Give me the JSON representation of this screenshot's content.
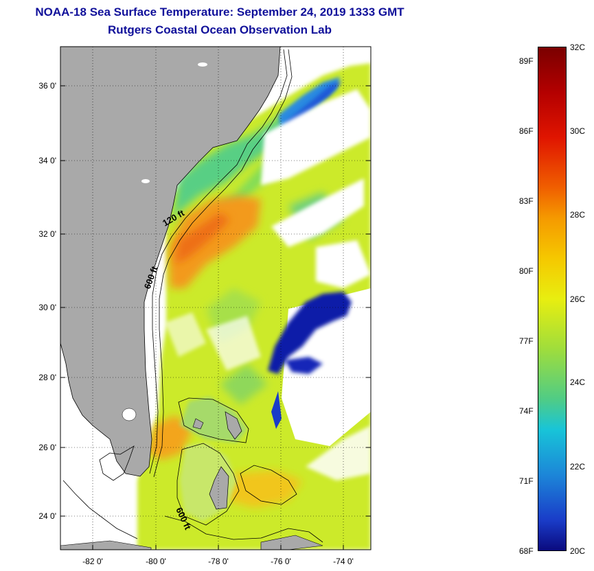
{
  "header": {
    "title": "NOAA-18 Sea Surface Temperature:  September 24, 2019 1333 GMT",
    "subtitle": "Rutgers Coastal Ocean Observation Lab"
  },
  "map": {
    "lat_labels": [
      "36 0'",
      "34 0'",
      "32 0'",
      "30 0'",
      "28 0'",
      "26 0'",
      "24 0'"
    ],
    "lon_labels": [
      "-82 0'",
      "-80 0'",
      "-78 0'",
      "-76 0'",
      "-74 0'"
    ],
    "isobath_labels": [
      "120 ft",
      "600 ft",
      "600 ft"
    ]
  },
  "colorbar": {
    "fahrenheit": [
      "89F",
      "86F",
      "83F",
      "80F",
      "77F",
      "74F",
      "71F",
      "68F"
    ],
    "celsius": [
      "32C",
      "30C",
      "28C",
      "26C",
      "24C",
      "22C",
      "20C"
    ]
  },
  "colors": {
    "title": "#10109a",
    "land": "#a9a9a9",
    "warm": "#f39a1c",
    "cold": "#0f1fa8"
  }
}
